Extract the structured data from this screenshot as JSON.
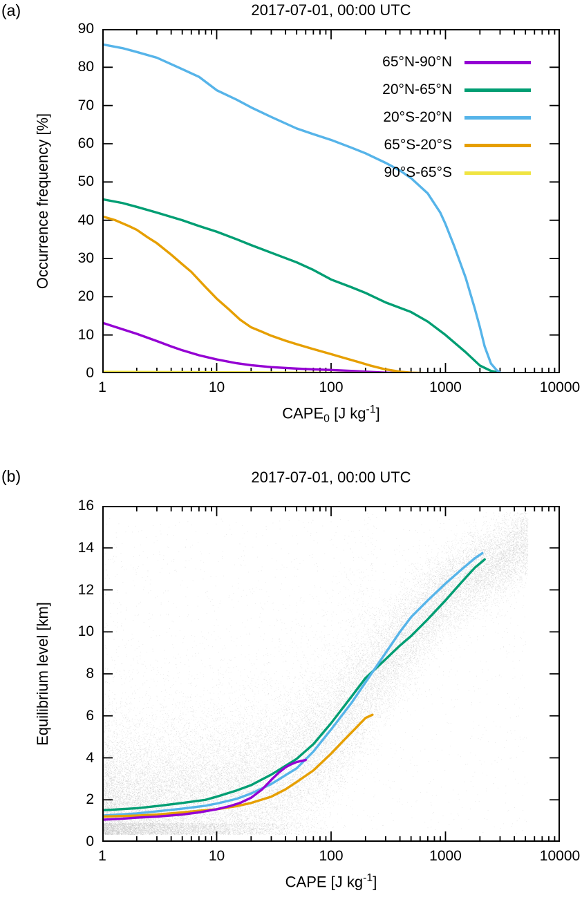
{
  "page": {
    "background": "#ffffff"
  },
  "figure": {
    "panel_a": {
      "panel_label": "(a)",
      "title": "2017-07-01, 00:00 UTC",
      "y_axis_label": "Occurrence frequency [%]",
      "x_label_parts": {
        "prefix": "CAPE",
        "sub": "0",
        "mid": " [J kg",
        "sup": "-1",
        "suffix": "]"
      },
      "x_tick_labels": [
        "1",
        "10",
        "100",
        "1000",
        "10000"
      ],
      "y_tick_labels": [
        "0",
        "10",
        "20",
        "30",
        "40",
        "50",
        "60",
        "70",
        "80",
        "90"
      ],
      "legend": [
        {
          "label": "65°N-90°N",
          "color": "#9400d3"
        },
        {
          "label": "20°N-65°N",
          "color": "#009e73"
        },
        {
          "label": "20°S-20°N",
          "color": "#56b4e9"
        },
        {
          "label": "65°S-20°S",
          "color": "#e69f00"
        },
        {
          "label": "90°S-65°S",
          "color": "#f0e442"
        }
      ]
    },
    "panel_b": {
      "panel_label": "(b)",
      "title": "2017-07-01, 00:00 UTC",
      "y_axis_label": "Equilibrium level [km]",
      "x_label_parts": {
        "prefix": "CAPE",
        "mid": " [J kg",
        "sup": "-1",
        "suffix": "]"
      },
      "x_tick_labels": [
        "1",
        "10",
        "100",
        "1000",
        "10000"
      ],
      "y_tick_labels": [
        "0",
        "2",
        "4",
        "6",
        "8",
        "10",
        "12",
        "14",
        "16"
      ]
    }
  },
  "chart_data": [
    {
      "type": "line",
      "title": "2017-07-01, 00:00 UTC",
      "xlabel": "CAPE₀ [J kg⁻¹]",
      "ylabel": "Occurrence frequency [%]",
      "x_scale": "log",
      "xlim": [
        1,
        10000
      ],
      "ylim": [
        0,
        90
      ],
      "x_ticks": [
        1,
        10,
        100,
        1000,
        10000
      ],
      "y_ticks": [
        0,
        10,
        20,
        30,
        40,
        50,
        60,
        70,
        80,
        90
      ],
      "legend_position": "top-right-inside",
      "grid": false,
      "series": [
        {
          "name": "65°N-90°N",
          "color": "#9400d3",
          "points": [
            [
              1,
              13.2
            ],
            [
              1.5,
              11.5
            ],
            [
              2,
              10.3
            ],
            [
              3,
              8.4
            ],
            [
              4,
              7.0
            ],
            [
              5,
              6.0
            ],
            [
              7,
              4.7
            ],
            [
              10,
              3.6
            ],
            [
              15,
              2.6
            ],
            [
              20,
              2.1
            ],
            [
              30,
              1.6
            ],
            [
              50,
              1.2
            ],
            [
              70,
              1.0
            ],
            [
              100,
              0.85
            ],
            [
              150,
              0.6
            ],
            [
              200,
              0.4
            ],
            [
              300,
              0.15
            ],
            [
              400,
              0.05
            ],
            [
              500,
              0.02
            ]
          ]
        },
        {
          "name": "20°N-65°N",
          "color": "#009e73",
          "points": [
            [
              1,
              45.5
            ],
            [
              1.5,
              44.5
            ],
            [
              2,
              43.5
            ],
            [
              3,
              42
            ],
            [
              5,
              40
            ],
            [
              7,
              38.5
            ],
            [
              10,
              37
            ],
            [
              15,
              35
            ],
            [
              20,
              33.5
            ],
            [
              30,
              31.5
            ],
            [
              50,
              29
            ],
            [
              70,
              27
            ],
            [
              100,
              24.5
            ],
            [
              150,
              22.5
            ],
            [
              200,
              21
            ],
            [
              300,
              18.5
            ],
            [
              500,
              16
            ],
            [
              700,
              13.5
            ],
            [
              1000,
              10
            ],
            [
              1500,
              5.5
            ],
            [
              2000,
              2
            ],
            [
              2500,
              0.6
            ],
            [
              3000,
              0.1
            ]
          ]
        },
        {
          "name": "20°S-20°N",
          "color": "#56b4e9",
          "points": [
            [
              1,
              86
            ],
            [
              1.5,
              85
            ],
            [
              2,
              84
            ],
            [
              3,
              82.5
            ],
            [
              5,
              79.5
            ],
            [
              7,
              77.5
            ],
            [
              10,
              74
            ],
            [
              15,
              71.5
            ],
            [
              20,
              69.5
            ],
            [
              30,
              67
            ],
            [
              50,
              64
            ],
            [
              70,
              62.5
            ],
            [
              100,
              61
            ],
            [
              150,
              59
            ],
            [
              200,
              57.5
            ],
            [
              300,
              55
            ],
            [
              400,
              53
            ],
            [
              500,
              51
            ],
            [
              700,
              47
            ],
            [
              900,
              42
            ],
            [
              1000,
              39
            ],
            [
              1200,
              33
            ],
            [
              1500,
              25
            ],
            [
              1800,
              17
            ],
            [
              2000,
              12
            ],
            [
              2200,
              7
            ],
            [
              2500,
              2.5
            ],
            [
              2800,
              0.8
            ],
            [
              3000,
              0.2
            ]
          ]
        },
        {
          "name": "65°S-20°S",
          "color": "#e69f00",
          "points": [
            [
              1,
              41
            ],
            [
              1.3,
              40
            ],
            [
              1.7,
              38.5
            ],
            [
              2,
              37.5
            ],
            [
              2.5,
              35.5
            ],
            [
              3,
              34
            ],
            [
              4,
              31
            ],
            [
              5,
              28.5
            ],
            [
              6,
              26.5
            ],
            [
              8,
              22.5
            ],
            [
              10,
              19.5
            ],
            [
              13,
              16.5
            ],
            [
              16,
              14
            ],
            [
              20,
              12
            ],
            [
              25,
              10.8
            ],
            [
              30,
              9.8
            ],
            [
              40,
              8.5
            ],
            [
              50,
              7.6
            ],
            [
              70,
              6.3
            ],
            [
              100,
              5
            ],
            [
              130,
              4
            ],
            [
              170,
              3
            ],
            [
              220,
              2
            ],
            [
              300,
              1
            ],
            [
              400,
              0.4
            ],
            [
              500,
              0.15
            ],
            [
              700,
              0.03
            ]
          ]
        },
        {
          "name": "90°S-65°S",
          "color": "#f0e442",
          "points": [
            [
              1,
              0.35
            ],
            [
              3,
              0.3
            ],
            [
              10,
              0.25
            ],
            [
              30,
              0.18
            ],
            [
              100,
              0.1
            ],
            [
              300,
              0.05
            ],
            [
              1000,
              0.01
            ],
            [
              10000,
              0.0
            ]
          ]
        }
      ]
    },
    {
      "type": "scatter",
      "title": "2017-07-01, 00:00 UTC",
      "xlabel": "CAPE [J kg⁻¹]",
      "ylabel": "Equilibrium level [km]",
      "x_scale": "log",
      "xlim": [
        1,
        10000
      ],
      "ylim": [
        0,
        16
      ],
      "x_ticks": [
        1,
        10,
        100,
        1000,
        10000
      ],
      "y_ticks": [
        0,
        2,
        4,
        6,
        8,
        10,
        12,
        14,
        16
      ],
      "grid": false,
      "scatter": {
        "color": "#bdbdbd",
        "alpha": 0.5,
        "n_points": 40000,
        "seed": 987654321,
        "x_decades": 3.72,
        "mean_curve": [
          [
            0,
            1.3
          ],
          [
            0.5,
            1.5
          ],
          [
            1,
            1.85
          ],
          [
            1.5,
            2.7
          ],
          [
            2,
            5.0
          ],
          [
            2.5,
            8.8
          ],
          [
            3,
            11.9
          ],
          [
            3.4,
            13.2
          ],
          [
            3.72,
            14.3
          ]
        ]
      },
      "series": [
        {
          "name": "20°N-65°N",
          "color": "#009e73",
          "points": [
            [
              1,
              1.5
            ],
            [
              2,
              1.6
            ],
            [
              3,
              1.7
            ],
            [
              5,
              1.85
            ],
            [
              8,
              2.0
            ],
            [
              10,
              2.15
            ],
            [
              15,
              2.45
            ],
            [
              20,
              2.7
            ],
            [
              30,
              3.2
            ],
            [
              50,
              3.95
            ],
            [
              70,
              4.65
            ],
            [
              100,
              5.65
            ],
            [
              150,
              6.9
            ],
            [
              200,
              7.8
            ],
            [
              300,
              8.7
            ],
            [
              400,
              9.35
            ],
            [
              500,
              9.8
            ],
            [
              700,
              10.6
            ],
            [
              1000,
              11.5
            ],
            [
              1400,
              12.4
            ],
            [
              1800,
              13.05
            ],
            [
              2200,
              13.45
            ]
          ]
        },
        {
          "name": "20°S-20°N",
          "color": "#56b4e9",
          "points": [
            [
              1,
              1.25
            ],
            [
              2,
              1.35
            ],
            [
              3,
              1.45
            ],
            [
              5,
              1.58
            ],
            [
              8,
              1.72
            ],
            [
              10,
              1.82
            ],
            [
              15,
              2.05
            ],
            [
              20,
              2.3
            ],
            [
              30,
              2.75
            ],
            [
              50,
              3.5
            ],
            [
              70,
              4.3
            ],
            [
              100,
              5.35
            ],
            [
              150,
              6.6
            ],
            [
              200,
              7.6
            ],
            [
              300,
              9.0
            ],
            [
              400,
              10.0
            ],
            [
              500,
              10.7
            ],
            [
              700,
              11.5
            ],
            [
              1000,
              12.3
            ],
            [
              1400,
              13.0
            ],
            [
              1800,
              13.5
            ],
            [
              2100,
              13.75
            ]
          ]
        },
        {
          "name": "65°S-20°S",
          "color": "#e69f00",
          "points": [
            [
              1,
              1.2
            ],
            [
              2,
              1.25
            ],
            [
              3,
              1.3
            ],
            [
              5,
              1.4
            ],
            [
              7,
              1.48
            ],
            [
              10,
              1.55
            ],
            [
              15,
              1.7
            ],
            [
              20,
              1.85
            ],
            [
              30,
              2.15
            ],
            [
              40,
              2.5
            ],
            [
              50,
              2.85
            ],
            [
              70,
              3.4
            ],
            [
              100,
              4.2
            ],
            [
              130,
              4.85
            ],
            [
              160,
              5.35
            ],
            [
              200,
              5.9
            ],
            [
              230,
              6.05
            ]
          ]
        },
        {
          "name": "65°N-90°N",
          "color": "#9400d3",
          "points": [
            [
              1,
              1.05
            ],
            [
              1.5,
              1.1
            ],
            [
              2,
              1.15
            ],
            [
              3,
              1.2
            ],
            [
              5,
              1.3
            ],
            [
              7,
              1.4
            ],
            [
              10,
              1.55
            ],
            [
              13,
              1.7
            ],
            [
              16,
              1.85
            ],
            [
              20,
              2.1
            ],
            [
              25,
              2.5
            ],
            [
              30,
              2.95
            ],
            [
              35,
              3.3
            ],
            [
              40,
              3.55
            ],
            [
              45,
              3.7
            ],
            [
              50,
              3.8
            ],
            [
              55,
              3.85
            ],
            [
              60,
              3.9
            ]
          ]
        }
      ]
    }
  ]
}
